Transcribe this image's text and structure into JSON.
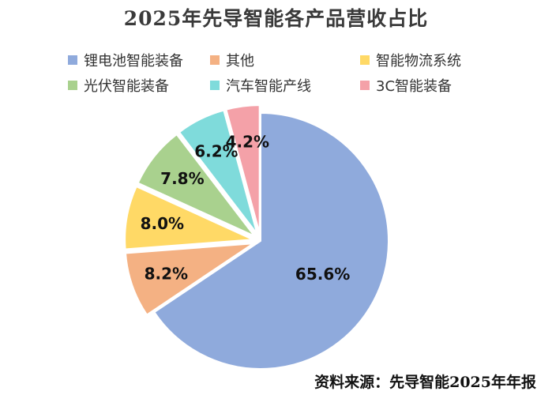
{
  "chart_data": {
    "type": "pie",
    "title": "2025年先导智能各产品营收占比",
    "slices": [
      {
        "label": "锂电池智能装备",
        "value": 65.6,
        "value_label": "65.6%",
        "color": "#8faadc"
      },
      {
        "label": "其他",
        "value": 8.2,
        "value_label": "8.2%",
        "color": "#f4b183"
      },
      {
        "label": "智能物流系统",
        "value": 8.0,
        "value_label": "8.0%",
        "color": "#ffd966"
      },
      {
        "label": "光伏智能装备",
        "value": 7.8,
        "value_label": "7.8%",
        "color": "#a9d18e"
      },
      {
        "label": "汽车智能产线",
        "value": 6.2,
        "value_label": "6.2%",
        "color": "#7fdbdb"
      },
      {
        "label": "3C智能装备",
        "value": 4.2,
        "value_label": "4.2%",
        "color": "#f4a1a8"
      }
    ],
    "legend_position": "top",
    "exploded": true
  },
  "source": "资料来源：先导智能2025年年报"
}
